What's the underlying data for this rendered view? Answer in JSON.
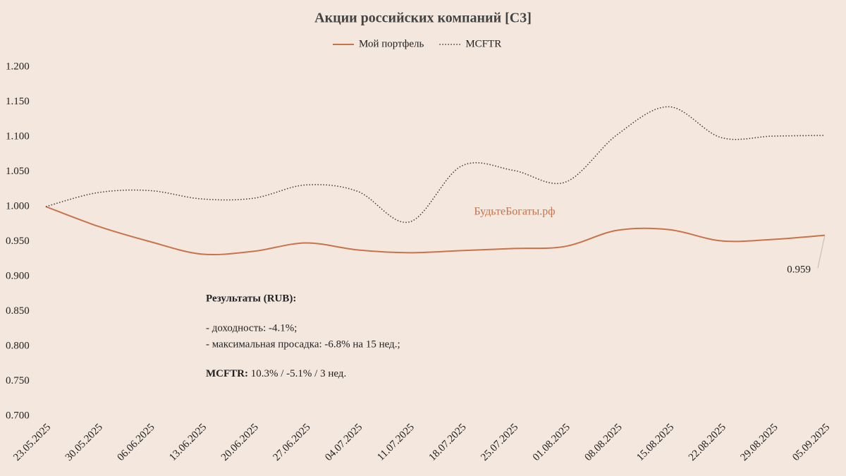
{
  "chart_data": {
    "type": "line",
    "title": "Акции российских компаний [С3]",
    "categories": [
      "23.05.2025",
      "30.05.2025",
      "06.06.2025",
      "13.06.2025",
      "20.06.2025",
      "27.06.2025",
      "04.07.2025",
      "11.07.2025",
      "18.07.2025",
      "25.07.2025",
      "01.08.2025",
      "08.08.2025",
      "15.08.2025",
      "22.08.2025",
      "29.08.2025",
      "05.09.2025"
    ],
    "series": [
      {
        "name": "Мой портфель",
        "color": "#c8734a",
        "dash": "solid",
        "values": [
          1.0,
          0.972,
          0.95,
          0.932,
          0.936,
          0.948,
          0.938,
          0.934,
          0.937,
          0.94,
          0.943,
          0.966,
          0.967,
          0.951,
          0.953,
          0.959
        ]
      },
      {
        "name": "MCFTR",
        "color": "#3a3a3a",
        "dash": "dotted",
        "values": [
          1.0,
          1.02,
          1.023,
          1.011,
          1.012,
          1.031,
          1.022,
          0.978,
          1.058,
          1.052,
          1.035,
          1.103,
          1.143,
          1.099,
          1.101,
          1.102
        ]
      }
    ],
    "ylim": [
      0.7,
      1.2
    ],
    "yticks": [
      {
        "value": 0.7,
        "label": "0.700"
      },
      {
        "value": 0.75,
        "label": "0.750"
      },
      {
        "value": 0.8,
        "label": "0.800"
      },
      {
        "value": 0.85,
        "label": "0.850"
      },
      {
        "value": 0.9,
        "label": "0.900"
      },
      {
        "value": 0.95,
        "label": "0.950"
      },
      {
        "value": 1.0,
        "label": "1.000"
      },
      {
        "value": 1.05,
        "label": "1.050"
      },
      {
        "value": 1.1,
        "label": "1.100"
      },
      {
        "value": 1.15,
        "label": "1.150"
      },
      {
        "value": 1.2,
        "label": "1.200"
      }
    ],
    "grid": false,
    "legend": "top",
    "watermark": "БудьтеБогаты.рф",
    "annotations": {
      "heading": "Результаты (RUB):",
      "lines": [
        "- доходность: -4.1%;",
        "- максимальная просадка: -6.8% на 15 нед.;"
      ],
      "mcftr_label": "MCFTR:",
      "mcftr_text": "10.3% / -5.1% / 3 нед."
    }
  }
}
